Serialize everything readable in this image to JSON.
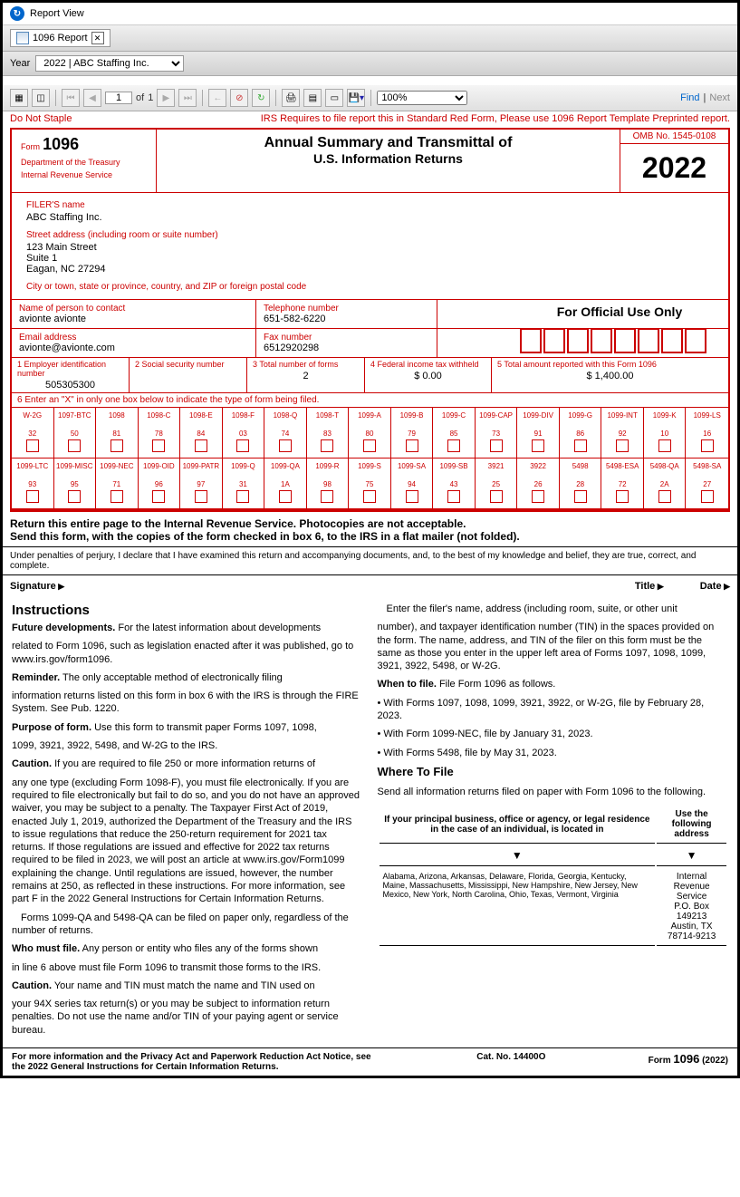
{
  "window": {
    "title": "Report View"
  },
  "tab": {
    "label": "1096 Report"
  },
  "yearbar": {
    "label": "Year",
    "selected": "2022 | ABC Staffing Inc."
  },
  "toolbar": {
    "page_current": "1",
    "page_of": "of",
    "page_total": "1",
    "zoom": "100%",
    "find": "Find",
    "next": "Next"
  },
  "warning": {
    "left": "Do Not Staple",
    "right": "IRS Requires to file report this in Standard Red Form, Please use 1096 Report Template Preprinted report."
  },
  "form": {
    "form_label": "Form",
    "form_no": "1096",
    "dept1": "Department of the Treasury",
    "dept2": "Internal Revenue Service",
    "title1": "Annual Summary and Transmittal of",
    "title2": "U.S. Information Returns",
    "omb": "OMB No. 1545-0108",
    "year": "2022",
    "filer": {
      "name_lbl": "FILER'S name",
      "name": "ABC Staffing Inc.",
      "street_lbl": "Street address (including room or suite number)",
      "street1": "123 Main Street",
      "street2": "Suite 1",
      "street3": "Eagan, NC 27294",
      "city_lbl": "City or town, state or province, country, and ZIP or foreign postal code"
    },
    "official": "For Official Use Only",
    "contact": {
      "name_lbl": "Name of person to contact",
      "name": "avionte avionte",
      "tel_lbl": "Telephone number",
      "tel": "651-582-6220",
      "email_lbl": "Email address",
      "email": "avionte@avionte.com",
      "fax_lbl": "Fax number",
      "fax": "6512920298"
    },
    "nums": {
      "ein_lbl": "1 Employer identification number",
      "ein": "505305300",
      "ssn_lbl": "2 Social security number",
      "ssn": "",
      "total_lbl": "3 Total number of forms",
      "total": "2",
      "fed_lbl": "4 Federal income tax withheld",
      "fed": "$    0.00",
      "amt_lbl": "5 Total amount reported with this Form 1096",
      "amt": "$    1,400.00"
    },
    "box6_lbl": "6 Enter an \"X\" in only one box below to indicate the type of form being filed.",
    "boxes_row1": [
      {
        "n": "W-2G",
        "c": "32"
      },
      {
        "n": "1097-BTC",
        "c": "50"
      },
      {
        "n": "1098",
        "c": "81"
      },
      {
        "n": "1098-C",
        "c": "78"
      },
      {
        "n": "1098-E",
        "c": "84"
      },
      {
        "n": "1098-F",
        "c": "03"
      },
      {
        "n": "1098-Q",
        "c": "74"
      },
      {
        "n": "1098-T",
        "c": "83"
      },
      {
        "n": "1099-A",
        "c": "80"
      },
      {
        "n": "1099-B",
        "c": "79"
      },
      {
        "n": "1099-C",
        "c": "85"
      },
      {
        "n": "1099-CAP",
        "c": "73"
      },
      {
        "n": "1099-DIV",
        "c": "91"
      },
      {
        "n": "1099-G",
        "c": "86"
      },
      {
        "n": "1099-INT",
        "c": "92"
      },
      {
        "n": "1099-K",
        "c": "10"
      },
      {
        "n": "1099-LS",
        "c": "16"
      }
    ],
    "boxes_row2": [
      {
        "n": "1099-LTC",
        "c": "93"
      },
      {
        "n": "1099-MISC",
        "c": "95"
      },
      {
        "n": "1099-NEC",
        "c": "71"
      },
      {
        "n": "1099-OID",
        "c": "96"
      },
      {
        "n": "1099-PATR",
        "c": "97"
      },
      {
        "n": "1099-Q",
        "c": "31"
      },
      {
        "n": "1099-QA",
        "c": "1A"
      },
      {
        "n": "1099-R",
        "c": "98"
      },
      {
        "n": "1099-S",
        "c": "75"
      },
      {
        "n": "1099-SA",
        "c": "94"
      },
      {
        "n": "1099-SB",
        "c": "43"
      },
      {
        "n": "3921",
        "c": "25"
      },
      {
        "n": "3922",
        "c": "26"
      },
      {
        "n": "5498",
        "c": "28"
      },
      {
        "n": "5498-ESA",
        "c": "72"
      },
      {
        "n": "5498-QA",
        "c": "2A"
      },
      {
        "n": "5498-SA",
        "c": "27"
      }
    ],
    "return_text1": "Return this entire page to the Internal Revenue Service. Photocopies are not acceptable.",
    "return_text2": "Send this form, with the copies of the form checked in box 6, to the IRS in a flat mailer (not folded).",
    "perjury": "Under penalties of perjury, I declare that I have examined this return and accompanying documents, and, to the best of my knowledge and belief, they are true, correct, and complete.",
    "sig": {
      "signature": "Signature",
      "title": "Title",
      "date": "Date"
    }
  },
  "instructions": {
    "heading": "Instructions",
    "future_lbl": "Future developments.",
    "future_txt": "For the latest information about developments",
    "future_txt2": "related to Form 1096, such as legislation enacted after it was published, go to www.irs.gov/form1096.",
    "reminder_lbl": "Reminder.",
    "reminder_txt": "The only acceptable method of electronically filing",
    "reminder_txt2": "information returns listed on this form in box 6 with the IRS is through the FIRE System. See Pub. 1220.",
    "purpose_lbl": "Purpose of form.",
    "purpose_txt": "Use this form to transmit paper Forms 1097, 1098,",
    "purpose_txt2": "1099, 3921, 3922, 5498, and W-2G to the IRS.",
    "caution1_lbl": "Caution.",
    "caution1_txt": "If you are required to file 250 or more information returns of",
    "caution1_txt2": "any one type (excluding Form 1098-F), you must file electronically. If you are required to file electronically but fail to do so, and you do not have an approved waiver, you may be subject to a penalty. The Taxpayer First Act of 2019, enacted July 1, 2019, authorized the Department of the Treasury and the IRS to issue regulations that reduce the 250-return requirement for 2021 tax returns. If those regulations are issued and effective for 2022 tax returns required to be filed in 2023, we will post an article at www.irs.gov/Form1099 explaining the change. Until regulations are issued, however, the number remains at 250, as reflected in these instructions. For more information, see part F in the 2022 General Instructions for Certain Information Returns.",
    "qa_txt": "Forms 1099-QA and 5498-QA can be filed on paper only, regardless of the number of returns.",
    "who_lbl": "Who must file.",
    "who_txt": "Any person or entity who files any of the forms shown",
    "who_txt2": "in line 6 above must file Form 1096 to transmit those forms to the IRS.",
    "caution2_lbl": "Caution.",
    "caution2_txt": "Your name and TIN must match the name and TIN used on",
    "caution2_txt2": "your 94X series tax return(s) or you may be subject to information return penalties. Do not use the name and/or TIN of your paying agent or service bureau.",
    "enter_txt": "Enter the filer's name, address (including room, suite, or other unit",
    "enter_txt2": "number), and taxpayer identification number (TIN) in the spaces provided on the form. The name, address, and TIN of the filer on this form must be the same as those you enter in the upper left area of Forms 1097, 1098, 1099, 3921, 3922, 5498, or W-2G.",
    "when_lbl": "When to file.",
    "when_txt": "File Form 1096 as follows.",
    "when_b1": "• With Forms 1097, 1098, 1099, 3921, 3922, or W-2G, file by February 28, 2023.",
    "when_b2": "• With Form 1099-NEC, file by January 31, 2023.",
    "when_b3": "• With Forms 5498, file by May 31, 2023.",
    "where_hdr": "Where To File",
    "where_txt": "Send all information returns filed on paper with Form 1096 to the following.",
    "where_col1": "If your principal business, office or agency, or legal residence in the case of an individual, is located in",
    "where_col2": "Use the following address",
    "states": "Alabama, Arizona, Arkansas, Delaware, Florida, Georgia, Kentucky, Maine, Massachusetts, Mississippi, New Hampshire, New Jersey, New Mexico, New York, North Carolina, Ohio, Texas, Vermont, Virginia",
    "addr": "Internal Revenue Service\nP.O. Box 149213\nAustin, TX 78714-9213"
  },
  "footer": {
    "left": "For more information and the Privacy Act and Paperwork Reduction Act Notice, see the 2022 General Instructions for Certain Information Returns.",
    "cat_lbl": "Cat. No.",
    "cat": "14400O",
    "form_lbl": "Form",
    "form_no": "1096",
    "form_yr": "(2022)"
  }
}
